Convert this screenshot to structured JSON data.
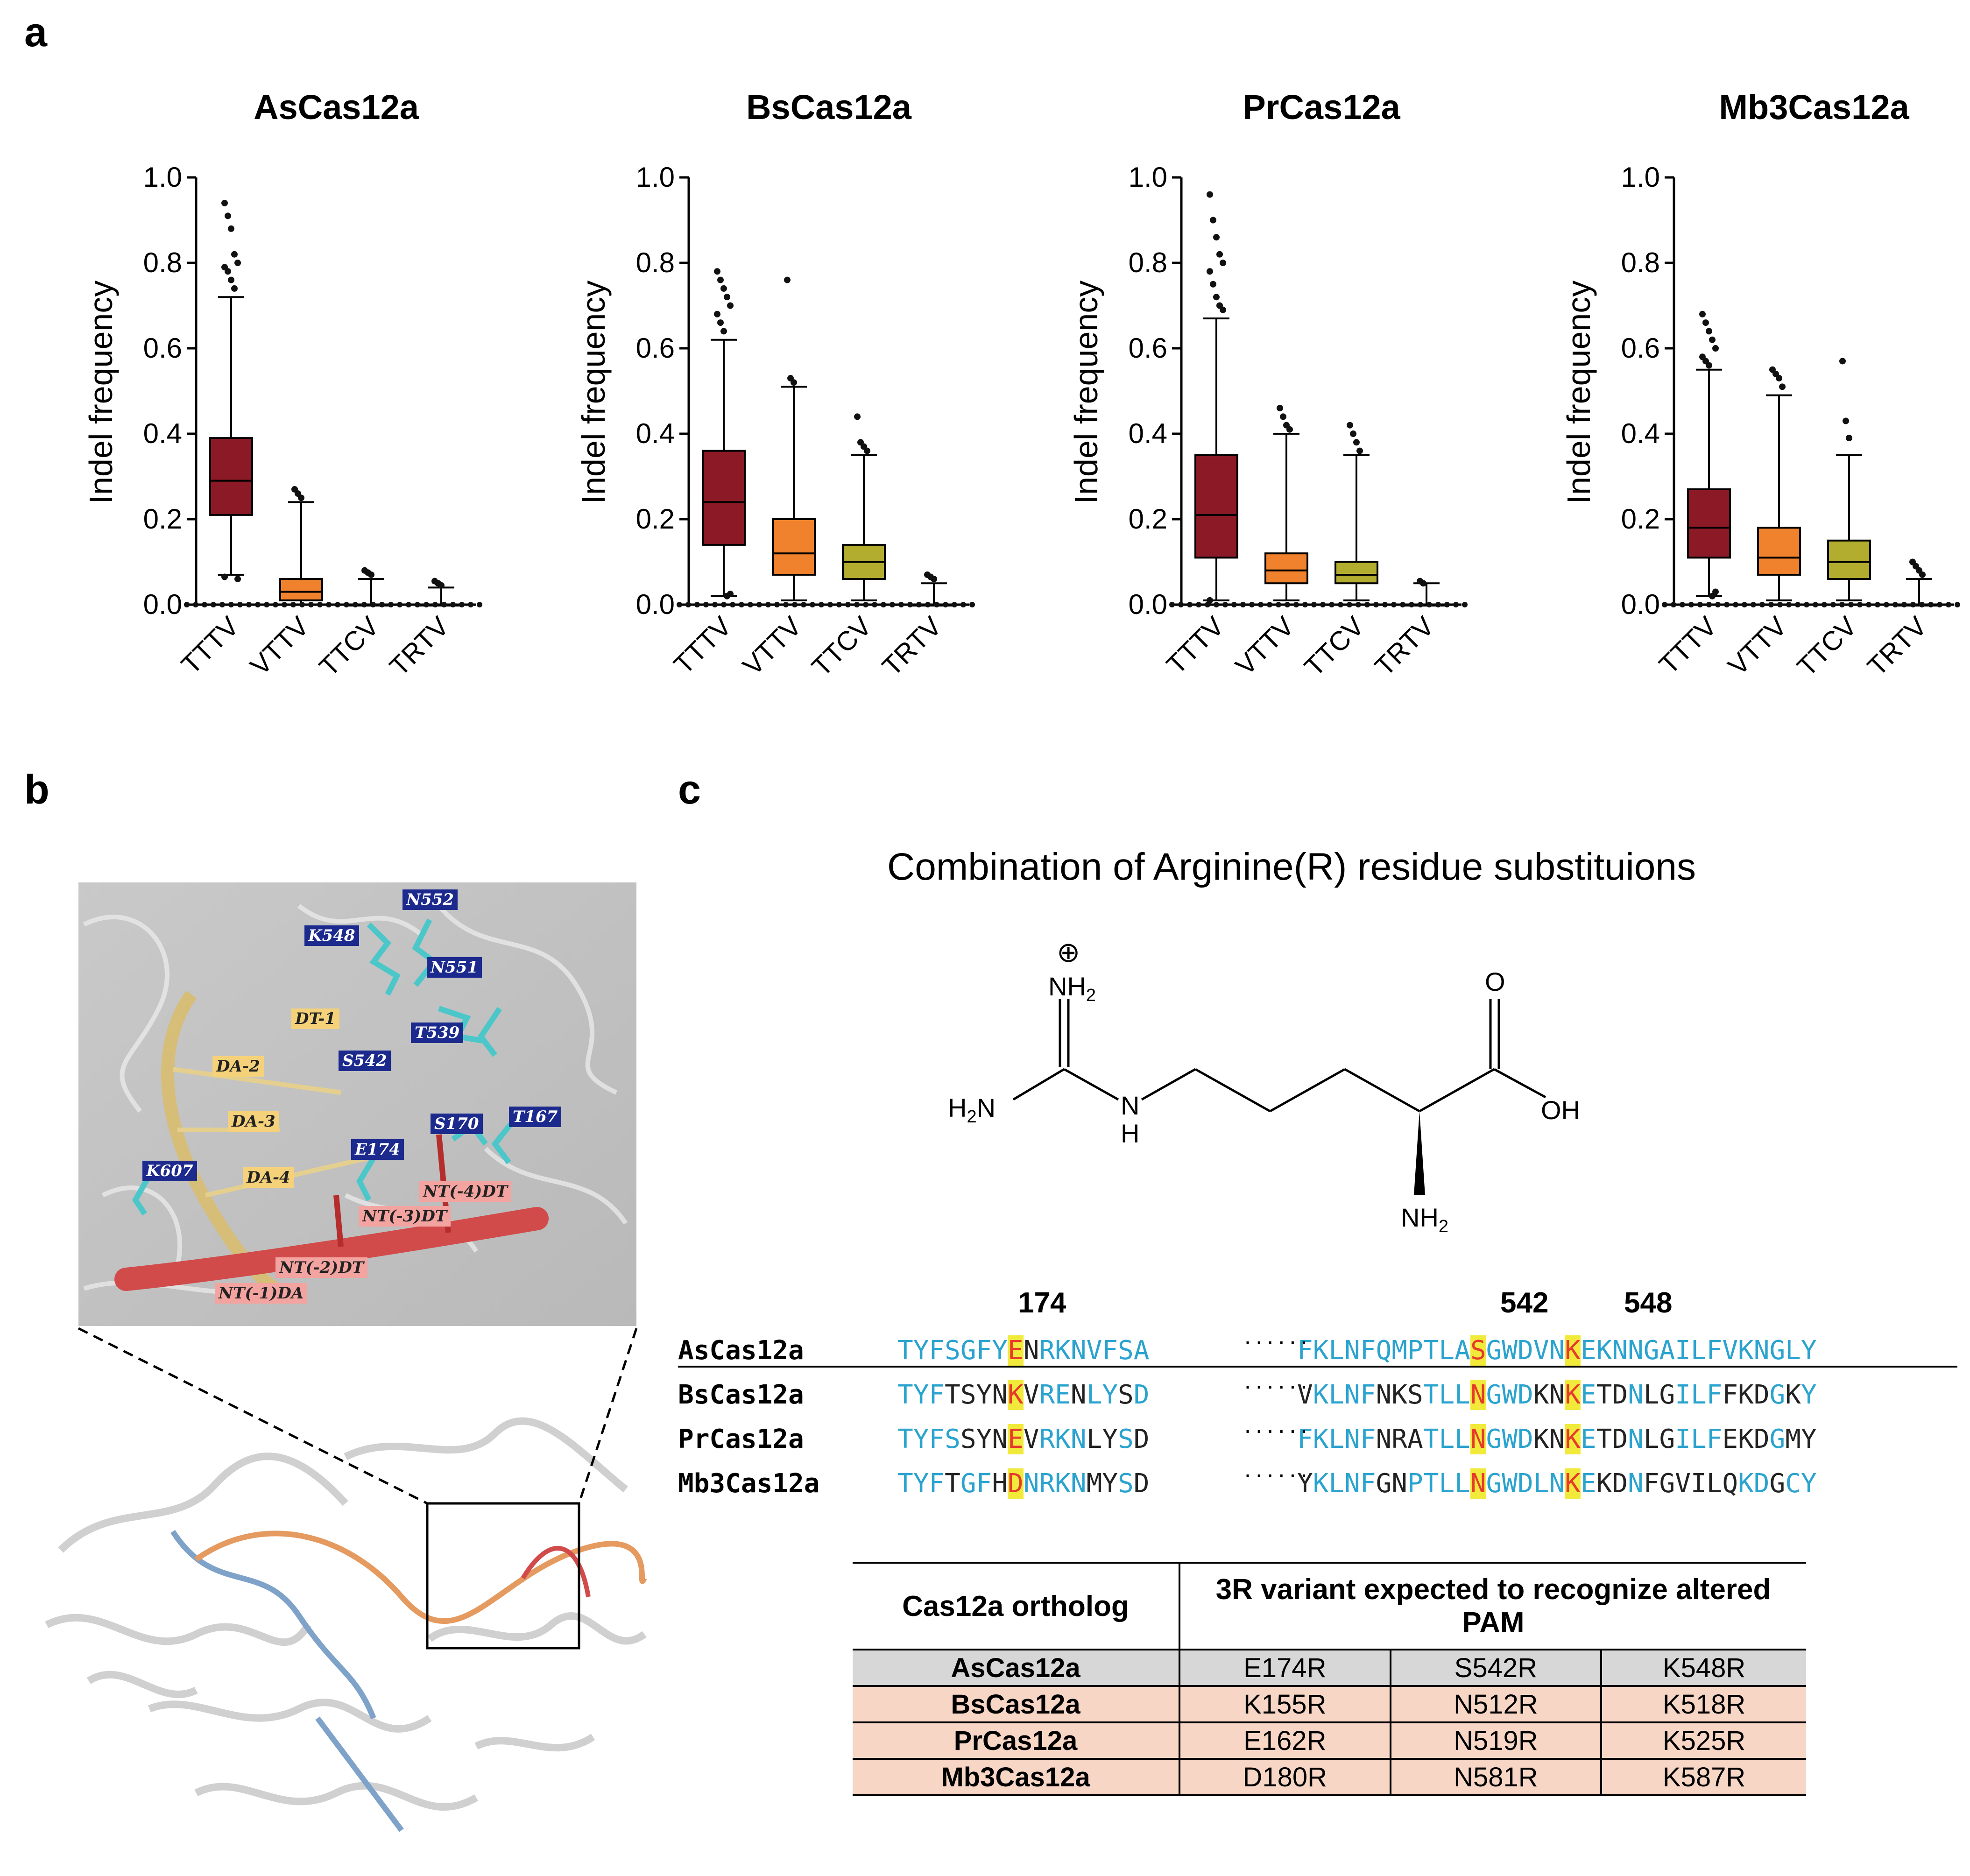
{
  "panel_labels": {
    "a": "a",
    "b": "b",
    "c": "c"
  },
  "chart_data": [
    {
      "type": "box",
      "title": "AsCas12a",
      "ylabel": "Indel frequency",
      "ylim": [
        0,
        1.0
      ],
      "yticks": [
        "0.0",
        "0.2",
        "0.4",
        "0.6",
        "0.8",
        "1.0"
      ],
      "categories": [
        "TTTV",
        "VTTV",
        "TTCV",
        "TRTV"
      ],
      "colors": [
        "#8b1a26",
        "#f0822e",
        "#b3ad2f",
        "#ffffff"
      ],
      "boxes": [
        {
          "min": 0.07,
          "q1": 0.21,
          "median": 0.29,
          "q3": 0.39,
          "max": 0.72
        },
        {
          "min": 0.0,
          "q1": 0.01,
          "median": 0.03,
          "q3": 0.06,
          "max": 0.24
        },
        {
          "min": 0.0,
          "q1": 0.0,
          "median": 0.0,
          "q3": 0.0,
          "max": 0.06
        },
        {
          "min": 0.0,
          "q1": 0.0,
          "median": 0.0,
          "q3": 0.0,
          "max": 0.04
        }
      ],
      "outliers": [
        [
          0.94,
          0.91,
          0.88,
          0.82,
          0.8,
          0.79,
          0.78,
          0.76,
          0.74,
          0.06,
          0.065
        ],
        [
          0.27,
          0.26,
          0.25
        ],
        [
          0.08,
          0.075,
          0.07
        ],
        [
          0.055,
          0.05,
          0.045
        ]
      ]
    },
    {
      "type": "box",
      "title": "BsCas12a",
      "ylabel": "Indel frequency",
      "ylim": [
        0,
        1.0
      ],
      "yticks": [
        "0.0",
        "0.2",
        "0.4",
        "0.6",
        "0.8",
        "1.0"
      ],
      "categories": [
        "TTTV",
        "VTTV",
        "TTCV",
        "TRTV"
      ],
      "colors": [
        "#8b1a26",
        "#f0822e",
        "#b3ad2f",
        "#ffffff"
      ],
      "boxes": [
        {
          "min": 0.02,
          "q1": 0.14,
          "median": 0.24,
          "q3": 0.36,
          "max": 0.62
        },
        {
          "min": 0.01,
          "q1": 0.07,
          "median": 0.12,
          "q3": 0.2,
          "max": 0.51
        },
        {
          "min": 0.01,
          "q1": 0.06,
          "median": 0.1,
          "q3": 0.14,
          "max": 0.35
        },
        {
          "min": 0.0,
          "q1": 0.0,
          "median": 0.0,
          "q3": 0.0,
          "max": 0.05
        }
      ],
      "outliers": [
        [
          0.78,
          0.76,
          0.74,
          0.72,
          0.7,
          0.68,
          0.66,
          0.64,
          0.02,
          0.025
        ],
        [
          0.76,
          0.53,
          0.52
        ],
        [
          0.44,
          0.38,
          0.37,
          0.36
        ],
        [
          0.07,
          0.065,
          0.06
        ]
      ]
    },
    {
      "type": "box",
      "title": "PrCas12a",
      "ylabel": "Indel frequency",
      "ylim": [
        0,
        1.0
      ],
      "yticks": [
        "0.0",
        "0.2",
        "0.4",
        "0.6",
        "0.8",
        "1.0"
      ],
      "categories": [
        "TTTV",
        "VTTV",
        "TTCV",
        "TRTV"
      ],
      "colors": [
        "#8b1a26",
        "#f0822e",
        "#b3ad2f",
        "#ffffff"
      ],
      "boxes": [
        {
          "min": 0.01,
          "q1": 0.11,
          "median": 0.21,
          "q3": 0.35,
          "max": 0.67
        },
        {
          "min": 0.01,
          "q1": 0.05,
          "median": 0.08,
          "q3": 0.12,
          "max": 0.4
        },
        {
          "min": 0.01,
          "q1": 0.05,
          "median": 0.07,
          "q3": 0.1,
          "max": 0.35
        },
        {
          "min": 0.0,
          "q1": 0.0,
          "median": 0.0,
          "q3": 0.0,
          "max": 0.05
        }
      ],
      "outliers": [
        [
          0.96,
          0.9,
          0.86,
          0.82,
          0.8,
          0.78,
          0.75,
          0.72,
          0.7,
          0.69,
          0.01
        ],
        [
          0.46,
          0.44,
          0.42,
          0.41
        ],
        [
          0.42,
          0.4,
          0.38,
          0.36
        ],
        [
          0.055,
          0.05
        ]
      ]
    },
    {
      "type": "box",
      "title": "Mb3Cas12a",
      "ylabel": "Indel frequency",
      "ylim": [
        0,
        1.0
      ],
      "yticks": [
        "0.0",
        "0.2",
        "0.4",
        "0.6",
        "0.8",
        "1.0"
      ],
      "categories": [
        "TTTV",
        "VTTV",
        "TTCV",
        "TRTV"
      ],
      "colors": [
        "#8b1a26",
        "#f0822e",
        "#b3ad2f",
        "#ffffff"
      ],
      "boxes": [
        {
          "min": 0.02,
          "q1": 0.11,
          "median": 0.18,
          "q3": 0.27,
          "max": 0.55
        },
        {
          "min": 0.01,
          "q1": 0.07,
          "median": 0.11,
          "q3": 0.18,
          "max": 0.49
        },
        {
          "min": 0.01,
          "q1": 0.06,
          "median": 0.1,
          "q3": 0.15,
          "max": 0.35
        },
        {
          "min": 0.0,
          "q1": 0.0,
          "median": 0.0,
          "q3": 0.0,
          "max": 0.06
        }
      ],
      "outliers": [
        [
          0.68,
          0.66,
          0.64,
          0.62,
          0.6,
          0.58,
          0.57,
          0.56,
          0.02,
          0.03
        ],
        [
          0.55,
          0.54,
          0.53,
          0.51
        ],
        [
          0.57,
          0.43,
          0.39
        ],
        [
          0.1,
          0.09,
          0.08,
          0.07
        ]
      ]
    }
  ],
  "panel_b": {
    "residue_labels": [
      "N552",
      "K548",
      "N551",
      "T539",
      "S542",
      "S170",
      "T167",
      "E174",
      "K607"
    ],
    "dna_labels": [
      "DT-1",
      "DA-2",
      "DA-3",
      "DA-4"
    ],
    "nt_labels": [
      "NT(-4)DT",
      "NT(-3)DT",
      "NT(-2)DT",
      "NT(-1)DA"
    ]
  },
  "panel_c": {
    "title": "Combination of Arginine(R) residue substituions",
    "chem": {
      "charge": "⊕",
      "nh2_top": "NH",
      "nh2_top_sub": "2",
      "h2n_left": "H",
      "h2n_sub": "2",
      "h2n_n": "N",
      "nh": "N",
      "h": "H",
      "o": "O",
      "oh": "OH",
      "nh2_bottom": "NH",
      "nh2_bottom_sub": "2"
    },
    "positions": [
      "174",
      "542",
      "548"
    ],
    "alignment": [
      {
        "name": "AsCas12a",
        "left": [
          [
            "TYFSGFY",
            "b"
          ],
          [
            "E",
            "hl"
          ],
          [
            "N",
            "k"
          ],
          [
            "RKNVFSA",
            "b"
          ]
        ],
        "right": [
          [
            "FKLNFQMPTLA",
            "b"
          ],
          [
            "S",
            "hl"
          ],
          [
            "GWDVN",
            "b"
          ],
          [
            "K",
            "hl"
          ],
          [
            "EKNNGAILFVKNGLY",
            "b"
          ]
        ]
      },
      {
        "name": "BsCas12a",
        "left": [
          [
            "TYF",
            "b"
          ],
          [
            "TSYN",
            "k"
          ],
          [
            "K",
            "hl"
          ],
          [
            "V",
            "k"
          ],
          [
            "RE",
            "b"
          ],
          [
            "N",
            "k"
          ],
          [
            "LY",
            "b"
          ],
          [
            "S",
            "k"
          ],
          [
            "D",
            "b"
          ]
        ],
        "right": [
          [
            "V",
            "k"
          ],
          [
            "KLNF",
            "b"
          ],
          [
            "NKS",
            "k"
          ],
          [
            "TLL",
            "b"
          ],
          [
            "N",
            "hl"
          ],
          [
            "GWD",
            "b"
          ],
          [
            "KN",
            "k"
          ],
          [
            "K",
            "hl"
          ],
          [
            "E",
            "b"
          ],
          [
            "TD",
            "k"
          ],
          [
            "N",
            "b"
          ],
          [
            "LG",
            "k"
          ],
          [
            "ILF",
            "b"
          ],
          [
            "FKD",
            "k"
          ],
          [
            "G",
            "b"
          ],
          [
            "K",
            "k"
          ],
          [
            "Y",
            "b"
          ]
        ]
      },
      {
        "name": "PrCas12a",
        "left": [
          [
            "TYFS",
            "b"
          ],
          [
            "SYN",
            "k"
          ],
          [
            "E",
            "hl"
          ],
          [
            "V",
            "k"
          ],
          [
            "RKN",
            "b"
          ],
          [
            "LY",
            "k"
          ],
          [
            "S",
            "b"
          ],
          [
            "D",
            "k"
          ]
        ],
        "right": [
          [
            "FKLNF",
            "b"
          ],
          [
            "NRA",
            "k"
          ],
          [
            "TLL",
            "b"
          ],
          [
            "N",
            "hl"
          ],
          [
            "GWD",
            "b"
          ],
          [
            "KN",
            "k"
          ],
          [
            "K",
            "hl"
          ],
          [
            "E",
            "b"
          ],
          [
            "TD",
            "k"
          ],
          [
            "N",
            "b"
          ],
          [
            "LG",
            "k"
          ],
          [
            "ILF",
            "b"
          ],
          [
            "EKD",
            "k"
          ],
          [
            "G",
            "b"
          ],
          [
            "MY",
            "k"
          ]
        ]
      },
      {
        "name": "Mb3Cas12a",
        "left": [
          [
            "TYF",
            "b"
          ],
          [
            "T",
            "k"
          ],
          [
            "GF",
            "b"
          ],
          [
            "H",
            "k"
          ],
          [
            "D",
            "hl"
          ],
          [
            "NRKN",
            "b"
          ],
          [
            "MY",
            "k"
          ],
          [
            "S",
            "b"
          ],
          [
            "D",
            "k"
          ]
        ],
        "right": [
          [
            "Y",
            "k"
          ],
          [
            "KLNF",
            "b"
          ],
          [
            "GN",
            "k"
          ],
          [
            "PTLL",
            "b"
          ],
          [
            "N",
            "hl"
          ],
          [
            "GWDLN",
            "b"
          ],
          [
            "K",
            "hl"
          ],
          [
            "E",
            "b"
          ],
          [
            "KD",
            "k"
          ],
          [
            "N",
            "b"
          ],
          [
            "FGVILQ",
            "k"
          ],
          [
            "KD",
            "b"
          ],
          [
            "G",
            "k"
          ],
          [
            "CY",
            "b"
          ]
        ]
      }
    ],
    "dots": "······",
    "table": {
      "header_col1": "Cas12a ortholog",
      "header_col2": "3R variant expected to recognize altered PAM",
      "rows": [
        {
          "name": "AsCas12a",
          "v1": "E174R",
          "v2": "S542R",
          "v3": "K548R",
          "style": "grey"
        },
        {
          "name": "BsCas12a",
          "v1": "K155R",
          "v2": "N512R",
          "v3": "K518R",
          "style": "pink"
        },
        {
          "name": "PrCas12a",
          "v1": "E162R",
          "v2": "N519R",
          "v3": "K525R",
          "style": "pink"
        },
        {
          "name": "Mb3Cas12a",
          "v1": "D180R",
          "v2": "N581R",
          "v3": "K587R",
          "style": "pink"
        }
      ]
    }
  }
}
